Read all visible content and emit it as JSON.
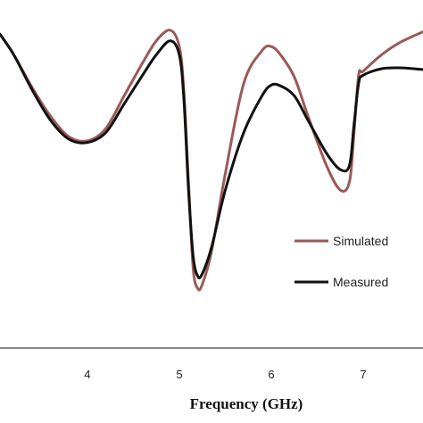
{
  "chart_data": {
    "type": "line",
    "xlabel": "Frequency (GHz)",
    "ylabel": "",
    "xlim": [
      3.05,
      7.65
    ],
    "ylim": [
      -35,
      2
    ],
    "x_ticks": [
      "4",
      "5",
      "6",
      "7"
    ],
    "grid": false,
    "legend_position": "right-center",
    "series": [
      {
        "name": "Simulated",
        "color": "#9a5a57",
        "x": [
          3.05,
          3.2,
          3.4,
          3.6,
          3.8,
          4.0,
          4.2,
          4.4,
          4.6,
          4.75,
          4.9,
          5.0,
          5.05,
          5.1,
          5.15,
          5.2,
          5.25,
          5.35,
          5.5,
          5.7,
          5.9,
          6.0,
          6.1,
          6.25,
          6.4,
          6.6,
          6.75,
          6.85,
          6.9,
          6.95,
          7.0,
          7.2,
          7.4,
          7.65
        ],
        "y": [
          0,
          -2.5,
          -6.5,
          -10,
          -12.5,
          -13,
          -11.5,
          -7.5,
          -3.5,
          -0.8,
          0.5,
          -1.5,
          -7,
          -18,
          -28.5,
          -31,
          -30.5,
          -26.5,
          -17,
          -6,
          -2,
          -1.5,
          -2.5,
          -5.2,
          -10,
          -16,
          -19,
          -18,
          -12,
          -5,
          -4.5,
          -2.5,
          -1,
          0.3
        ]
      },
      {
        "name": "Measured",
        "color": "#111111",
        "x": [
          3.05,
          3.2,
          3.4,
          3.6,
          3.8,
          4.0,
          4.2,
          4.4,
          4.6,
          4.75,
          4.9,
          5.0,
          5.05,
          5.1,
          5.15,
          5.2,
          5.25,
          5.35,
          5.5,
          5.7,
          5.9,
          6.0,
          6.1,
          6.25,
          6.4,
          6.6,
          6.75,
          6.85,
          6.9,
          6.95,
          7.0,
          7.2,
          7.4,
          7.65
        ],
        "y": [
          0,
          -2.5,
          -6.8,
          -10.5,
          -12.8,
          -13.2,
          -12,
          -8.5,
          -5,
          -2.5,
          -0.8,
          -2.5,
          -8,
          -19,
          -27,
          -29.5,
          -29.2,
          -26,
          -19,
          -12,
          -7.5,
          -6.2,
          -6.3,
          -7.5,
          -10.5,
          -14.5,
          -16.5,
          -16,
          -11,
          -6,
          -5,
          -4.2,
          -4.1,
          -4.3
        ]
      }
    ]
  }
}
